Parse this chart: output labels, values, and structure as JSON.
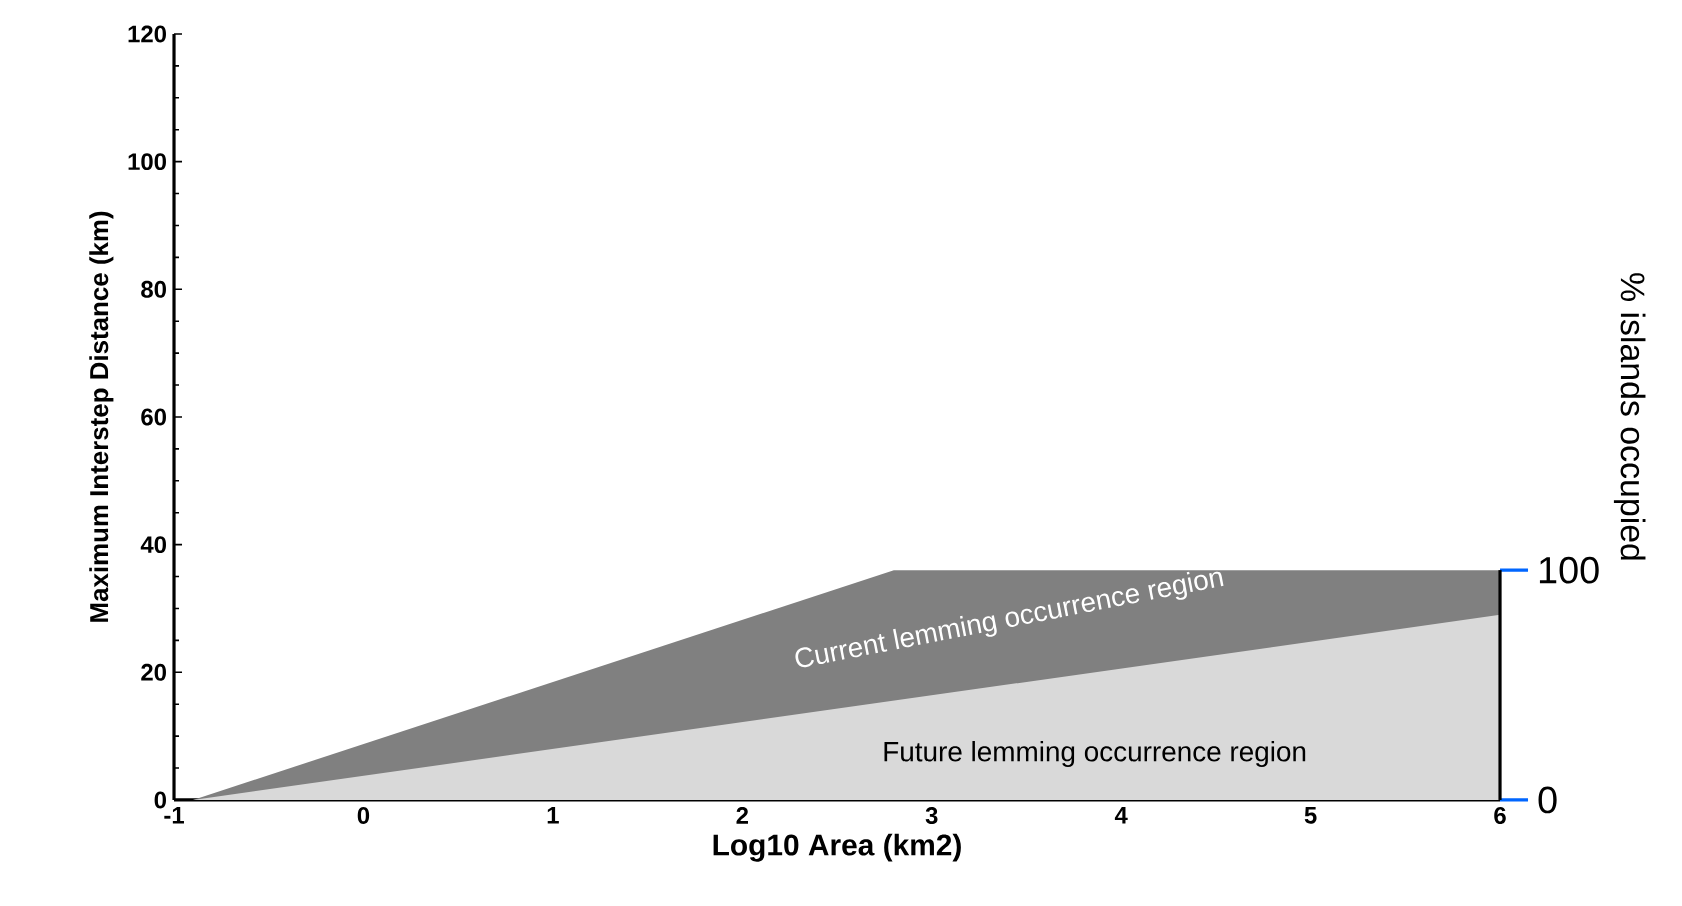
{
  "chart_data": {
    "type": "area",
    "xlabel": "Log10 Area (km2)",
    "ylabel": "Maximum Interstep Distance (km)",
    "y2label": "% islands occupied",
    "series": [
      {
        "name": "Current lemming occurrence region",
        "color": "#808080",
        "x": [
          -0.9,
          2.8,
          6
        ],
        "values": [
          0,
          36,
          36
        ]
      },
      {
        "name": "Future lemming occurrence region",
        "color": "#d9d9d9",
        "x": [
          -0.9,
          6
        ],
        "values": [
          0,
          29
        ]
      }
    ],
    "xlim": [
      -1,
      6
    ],
    "xticks": [
      -1,
      0,
      1,
      2,
      3,
      4,
      5,
      6
    ],
    "ylim": [
      0,
      120
    ],
    "yticks": [
      0,
      20,
      40,
      60,
      80,
      100,
      120
    ],
    "y2lim": [
      0,
      333.3
    ],
    "y2ticks": [
      0,
      100
    ]
  }
}
